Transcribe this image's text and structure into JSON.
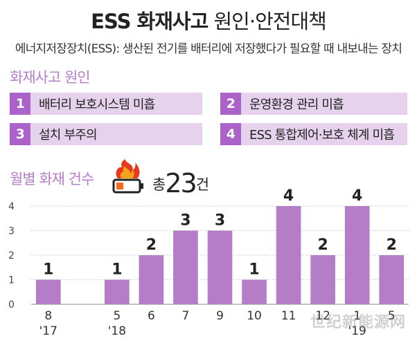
{
  "header": {
    "title_bold": "ESS 화재사고",
    "title_light": "원인·안전대책",
    "subtitle": "에너지저장장치(ESS): 생산된 전기를 배터리에 저장했다가 필요할 때 내보내는 장치"
  },
  "causes": {
    "heading": "화재사고 원인",
    "items": [
      {
        "num": "1",
        "label": "배터리 보호시스템 미흡"
      },
      {
        "num": "2",
        "label": "운영환경 관리 미흡"
      },
      {
        "num": "3",
        "label": "설치 부주의"
      },
      {
        "num": "4",
        "label": "ESS 통합제어·보호 체계 미흡"
      }
    ]
  },
  "monthly": {
    "heading": "월별 화재 건수",
    "total_prefix": "총",
    "total_value": "23",
    "total_suffix": "건",
    "icon": "fire-battery-icon"
  },
  "watermark": "世纪新能源网",
  "colors": {
    "bar": "#b57dc7",
    "accent": "#ab62c9",
    "cause_bg": "#e7d2ee"
  },
  "chart_data": {
    "type": "bar",
    "categories": [
      "8",
      "",
      "5",
      "6",
      "7",
      "9",
      "10",
      "11",
      "12",
      "1",
      "5"
    ],
    "year_labels": [
      "'17",
      "",
      "'18",
      "",
      "",
      "",
      "",
      "",
      "",
      "'19",
      ""
    ],
    "values": [
      1,
      null,
      1,
      2,
      3,
      3,
      1,
      4,
      2,
      4,
      2
    ],
    "yticks": [
      0,
      1,
      2,
      3,
      4
    ],
    "ylim": [
      0,
      4
    ],
    "title": "월별 화재 건수",
    "xlabel": "",
    "ylabel": "",
    "grid": true
  }
}
